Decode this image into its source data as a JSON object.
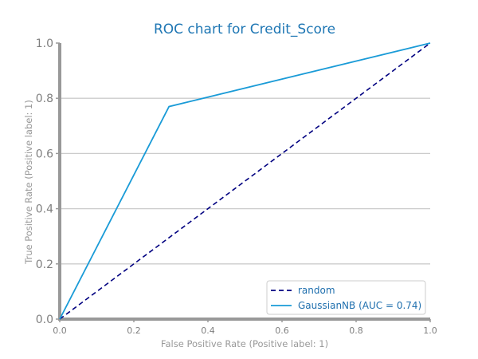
{
  "chart_data": {
    "type": "line",
    "title": "ROC chart for Credit_Score",
    "xlabel": "False Positive Rate (Positive label: 1)",
    "ylabel": "True Positive Rate (Positive label: 1)",
    "xlim": [
      0,
      1
    ],
    "ylim": [
      0,
      1
    ],
    "x_ticks": [
      "0.0",
      "0.2",
      "0.4",
      "0.6",
      "0.8",
      "1.0"
    ],
    "y_ticks": [
      "0.0",
      "0.2",
      "0.4",
      "0.6",
      "0.8",
      "1.0"
    ],
    "grid": "horizontal",
    "legend_position": "lower-right",
    "series": [
      {
        "name": "random",
        "style": "dashed",
        "color": "#000080",
        "x": [
          0,
          1
        ],
        "y": [
          0,
          1
        ]
      },
      {
        "name": "GaussianNB (AUC = 0.74)",
        "style": "solid",
        "color": "#1a9bd7",
        "x": [
          0,
          0.295,
          1
        ],
        "y": [
          0,
          0.77,
          1
        ]
      }
    ],
    "colors": {
      "axis": "#999999",
      "grid": "#cccccc",
      "title": "#1f77b4",
      "text": "#7f7f7f"
    }
  }
}
